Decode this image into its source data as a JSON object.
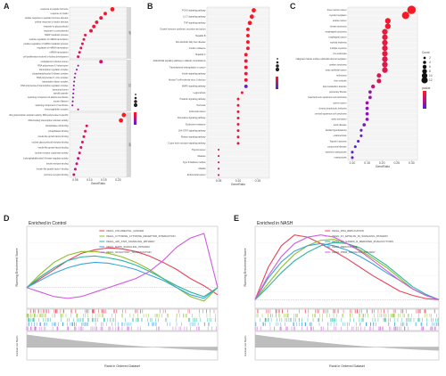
{
  "panels": {
    "a": "A",
    "b": "B",
    "c": "C",
    "d": "D",
    "e": "E"
  },
  "colors": {
    "high": "#ff1a1a",
    "mid": "#c0137a",
    "low": "#4b1ee6"
  },
  "chart_data": [
    {
      "type": "scatter",
      "panel": "A",
      "xlabel": "GeneRatio",
      "x_ticks": [
        "0.05",
        "0.10",
        "0.15",
        "0.20"
      ],
      "xlim": [
        0.03,
        0.23
      ],
      "facets": [
        {
          "name": "BP",
          "terms": [
            "response to peptide hormone",
            "response to insulin",
            "cellular response to peptide hormone stimulus",
            "cellular response to insulin stimulus",
            "response to glucocorticoid",
            "response to corticosteroid",
            "NADP metabolic process",
            "positive regulation of miRNA transcription",
            "positive regulation of miRNA metabolic process",
            "regulation of miRNA transcription",
            "miRNA transcription",
            "cell proliferation involved in kidney development"
          ],
          "x": [
            0.18,
            0.155,
            0.14,
            0.125,
            0.115,
            0.105,
            0.085,
            0.08,
            0.075,
            0.07,
            0.065,
            0.06
          ],
          "size": [
            4,
            3,
            3,
            3,
            3,
            3,
            2,
            2,
            2,
            2,
            2,
            2
          ],
          "p": [
            0.95,
            0.9,
            0.85,
            0.85,
            0.8,
            0.8,
            0.75,
            0.75,
            0.7,
            0.7,
            0.7,
            0.65
          ]
        },
        {
          "name": "CC",
          "terms": [
            "endoplasmic reticulum lumen",
            "RNA polymerase II, holoenzyme",
            "transcription regulator complex",
            "phosphatidylinositol 3-kinase complex",
            "RNA polymerase II, core complex",
            "transcription factor complex",
            "RNA polymerase II transcription regulator complex",
            "lysosomal lumen",
            "specific granule",
            "spanning component of plasma membrane",
            "myosin filament",
            "spanning component of membrane",
            "immunoglobulin complex"
          ],
          "x": [
            0.14,
            0.06,
            0.055,
            0.05,
            0.048,
            0.046,
            0.045,
            0.044,
            0.043,
            0.042,
            0.041,
            0.04,
            0.06
          ],
          "size": [
            3,
            1,
            1,
            1,
            1,
            1,
            1,
            1,
            1,
            1,
            1,
            1,
            1
          ],
          "p": [
            0.6,
            0.3,
            0.3,
            0.3,
            0.3,
            0.3,
            0.3,
            0.3,
            0.3,
            0.25,
            0.25,
            0.25,
            0.4
          ]
        },
        {
          "name": "MF",
          "terms": [
            "DNA-binding transcription activator activity, RNA polymerase II-specific",
            "DNA-binding transcription activator activity",
            "phosphatase 2A binding",
            "phosphatase binding",
            "insulin-like growth factor binding",
            "nuclear glucocorticoid receptor binding",
            "insulin-like growth factor binding",
            "nuclear receptor coactivator activity",
            "1-phosphatidylinositol-3-kinase regulator activity",
            "insulin receptor binding",
            "insulin-like growth factor I binding",
            "hormone receptor binding"
          ],
          "x": [
            0.22,
            0.21,
            0.09,
            0.085,
            0.08,
            0.075,
            0.07,
            0.065,
            0.06,
            0.055,
            0.05,
            0.045
          ],
          "size": [
            4,
            4,
            2,
            2,
            2,
            2,
            2,
            2,
            2,
            2,
            2,
            2
          ],
          "p": [
            0.98,
            0.95,
            0.7,
            0.7,
            0.65,
            0.65,
            0.6,
            0.6,
            0.55,
            0.55,
            0.5,
            0.5
          ]
        }
      ]
    },
    {
      "type": "scatter",
      "panel": "B",
      "xlabel": "GeneRatio",
      "x_ticks": [
        "0.05",
        "0.10",
        "0.15"
      ],
      "xlim": [
        0.02,
        0.18
      ],
      "terms": [
        "FOXO signaling pathway",
        "IL-17 signaling pathway",
        "TNF signaling pathway",
        "Growth hormone synthesis, secretion and action",
        "Hepatitis B",
        "Non-alcoholic fatty liver disease",
        "Insulin resistance",
        "Hepatitis C",
        "AGE-RAGE signaling pathway in diabetic complications",
        "Transcriptional misregulation in cancer",
        "Insulin signaling pathway",
        "Human T-cell leukemia virus 1 infection",
        "MAPK signaling pathway",
        "Legionellosis",
        "Prolactin signaling pathway",
        "Pertussis",
        "Colorectal cancer",
        "Chemokine signaling pathway",
        "Endocrine resistance",
        "JAK-STAT signaling pathway",
        "Relaxin signaling pathway",
        "C-type lectin receptor signaling pathway",
        "Thyroid cancer",
        "Measles",
        "Type II diabetes mellitus",
        "Malaria",
        "Endometrial cancer"
      ],
      "x": [
        0.14,
        0.135,
        0.13,
        0.125,
        0.125,
        0.125,
        0.125,
        0.12,
        0.12,
        0.12,
        0.12,
        0.12,
        0.12,
        0.11,
        0.1,
        0.1,
        0.1,
        0.1,
        0.1,
        0.1,
        0.1,
        0.1,
        0.05,
        0.05,
        0.05,
        0.05,
        0.05
      ],
      "size": [
        4,
        4,
        4,
        3,
        3,
        3,
        3,
        3,
        3,
        3,
        3,
        3,
        3,
        2,
        2,
        2,
        2,
        2,
        2,
        2,
        2,
        2,
        1,
        1,
        1,
        1,
        1
      ],
      "p": [
        0.95,
        0.95,
        0.9,
        0.9,
        0.9,
        0.9,
        0.9,
        0.85,
        0.85,
        0.85,
        0.85,
        0.85,
        0.1,
        0.85,
        0.85,
        0.85,
        0.8,
        0.8,
        0.8,
        0.8,
        0.8,
        0.75,
        0.6,
        0.6,
        0.55,
        0.55,
        0.5
      ]
    },
    {
      "type": "scatter",
      "panel": "C",
      "xlabel": "GeneRatio",
      "x_ticks": [
        "0.10",
        "0.15",
        "0.20",
        "0.25",
        "0.30"
      ],
      "xlim": [
        0.085,
        0.32
      ],
      "legend_title": "Count",
      "legend_sizes": [
        "2",
        "4",
        "6",
        "8",
        "10",
        "12"
      ],
      "colorbar_title": "pvalue",
      "terms": [
        "bone marrow cancer",
        "myeloid neoplasm",
        "ovarian cancer",
        "breast carcinoma",
        "esophageal carcinoma",
        "esophageal cancer",
        "myeloid leukemia",
        "multiple myeloma",
        "pre-eclampsia",
        "malignant ovarian surface epithelial-stromal neoplasm",
        "ovarian carcinoma",
        "ovary epithelial cancer",
        "embryoma",
        "liver cirrhosis",
        "lipid metabolism disorder",
        "pulmonary fibrosis",
        "head and neck squamous cell carcinoma",
        "uterine cancer",
        "chronic lymphocytic leukemia",
        "cervical squamous cell carcinoma",
        "aortic aneurysm",
        "aortic disease",
        "familial hyperlipidemia",
        "endometriosis",
        "Kaposi's sarcoma",
        "conjunctival disease",
        "systemic mastocytosis",
        "mastocytosis"
      ],
      "x": [
        0.3,
        0.28,
        0.22,
        0.22,
        0.21,
        0.21,
        0.21,
        0.21,
        0.21,
        0.21,
        0.21,
        0.21,
        0.19,
        0.19,
        0.17,
        0.16,
        0.16,
        0.15,
        0.15,
        0.15,
        0.15,
        0.14,
        0.13,
        0.13,
        0.12,
        0.11,
        0.1,
        0.1
      ],
      "size": [
        12,
        10,
        7,
        7,
        7,
        7,
        7,
        7,
        7,
        7,
        7,
        7,
        5,
        5,
        4,
        3,
        3,
        3,
        3,
        3,
        3,
        3,
        2,
        2,
        2,
        2,
        2,
        2
      ],
      "p": [
        0.95,
        0.95,
        0.9,
        0.9,
        0.85,
        0.85,
        0.85,
        0.8,
        0.8,
        0.75,
        0.75,
        0.75,
        0.7,
        0.7,
        0.55,
        0.3,
        0.3,
        0.3,
        0.25,
        0.25,
        0.25,
        0.2,
        0.15,
        0.15,
        0.1,
        0.1,
        0.1,
        0.1
      ]
    },
    {
      "type": "line",
      "panel": "D",
      "title": "Enriched in Control",
      "ylabel": "Running Enrichment Score",
      "ylabel2": "Ranked List Metric",
      "xlabel": "Rank in Ordered Dataset",
      "series": [
        {
          "name": "KEGG_COLORECTAL_CANCER",
          "color": "#e8435c",
          "values": [
            0,
            0.1,
            0.2,
            0.3,
            0.38,
            0.42,
            0.44,
            0.43,
            0.4,
            0.35,
            0.28,
            0.2,
            0.1,
            0.02,
            -0.08
          ]
        },
        {
          "name": "KEGG_CYTOKINE_CYTOKINE_RECEPTOR_INTERACTION",
          "color": "#8fbf2a",
          "values": [
            0,
            0.15,
            0.28,
            0.36,
            0.4,
            0.4,
            0.38,
            0.34,
            0.28,
            0.2,
            0.1,
            0.0,
            -0.1,
            -0.15,
            0
          ]
        },
        {
          "name": "KEGG_JAK_STAT_SIGNALING_PATHWAY",
          "color": "#2bb5a0",
          "values": [
            0,
            0.12,
            0.22,
            0.3,
            0.34,
            0.35,
            0.33,
            0.3,
            0.25,
            0.18,
            0.1,
            0.02,
            -0.05,
            -0.1,
            0
          ]
        },
        {
          "name": "KEGG_MAPK_SIGNALING_PATHWAY",
          "color": "#3aa6e0",
          "values": [
            0,
            0.08,
            0.16,
            0.22,
            0.26,
            0.28,
            0.27,
            0.24,
            0.2,
            0.14,
            0.08,
            0.0,
            -0.08,
            -0.12,
            0
          ]
        },
        {
          "name": "KEGG_OLFACTORY_TRANSDUCTION",
          "color": "#d05be0",
          "values": [
            0,
            -0.05,
            -0.1,
            -0.12,
            -0.1,
            -0.05,
            0.0,
            0.05,
            0.1,
            0.18,
            0.3,
            0.45,
            0.55,
            0.6,
            0
          ]
        }
      ]
    },
    {
      "type": "line",
      "panel": "E",
      "title": "Enriched in NASH",
      "ylabel": "Running Enrichment Score",
      "ylabel2": "Ranked List Metric",
      "xlabel": "Rank in Ordered Dataset",
      "series": [
        {
          "name": "KEGG_DNA_REPLICATION",
          "color": "#e8435c",
          "values": [
            0,
            0.3,
            0.5,
            0.6,
            0.58,
            0.52,
            0.45,
            0.38,
            0.3,
            0.22,
            0.15,
            0.08,
            0.04,
            0.01,
            0
          ]
        },
        {
          "name": "KEGG_FC_EPSILON_RI_SIGNALING_PATHWAY",
          "color": "#8fbf2a",
          "values": [
            0,
            0.15,
            0.3,
            0.42,
            0.5,
            0.55,
            0.56,
            0.52,
            0.46,
            0.38,
            0.3,
            0.2,
            0.1,
            0.04,
            0
          ]
        },
        {
          "name": "KEGG_FC_GAMMA_R_MEDIATED_PHAGOCYTOSIS",
          "color": "#2bb5a0",
          "values": [
            0,
            0.12,
            0.25,
            0.36,
            0.44,
            0.5,
            0.53,
            0.52,
            0.48,
            0.4,
            0.32,
            0.22,
            0.12,
            0.05,
            0
          ]
        },
        {
          "name": "KEGG_PEROXISOME",
          "color": "#3aa6e0",
          "values": [
            0,
            0.2,
            0.35,
            0.45,
            0.5,
            0.52,
            0.5,
            0.46,
            0.4,
            0.33,
            0.25,
            0.18,
            0.1,
            0.04,
            0
          ]
        },
        {
          "name": "KEGG_PPAR_SIGNALING_PATHWAY",
          "color": "#d05be0",
          "values": [
            0,
            0.22,
            0.4,
            0.52,
            0.58,
            0.6,
            0.58,
            0.52,
            0.45,
            0.36,
            0.27,
            0.18,
            0.1,
            0.04,
            0
          ]
        }
      ]
    }
  ]
}
